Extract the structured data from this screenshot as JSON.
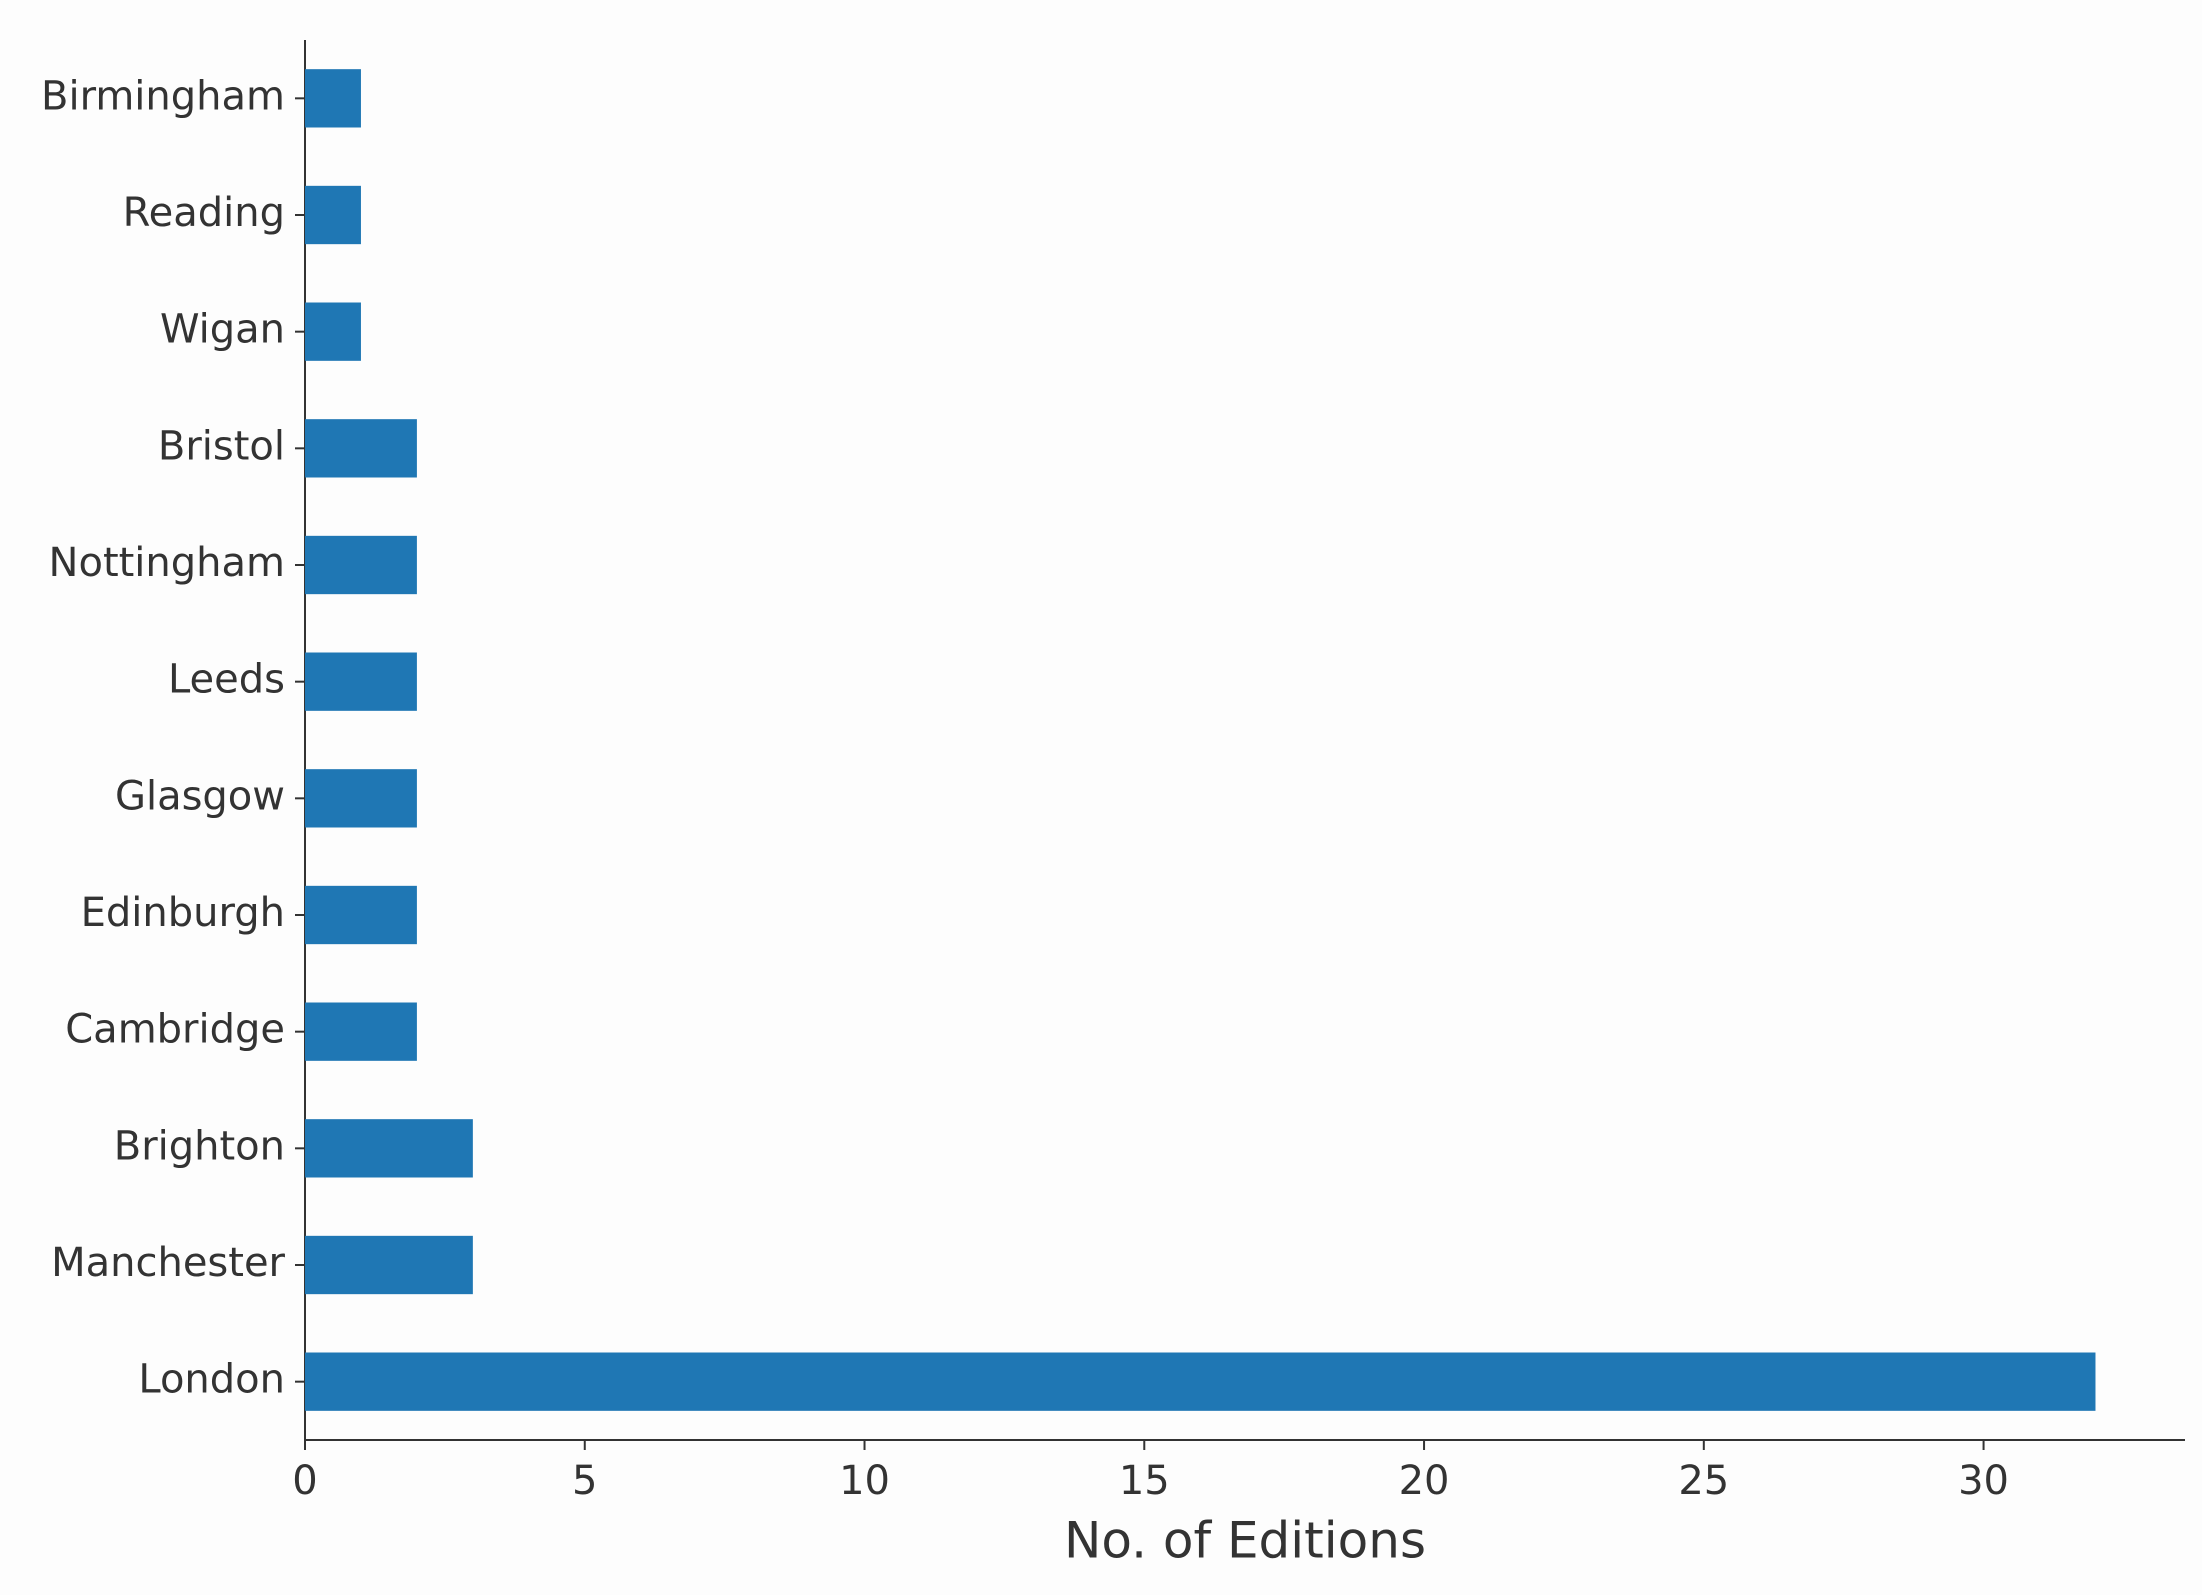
{
  "chart_data": {
    "type": "barh",
    "xlabel": "No. of Editions",
    "categories": [
      "Birmingham",
      "Reading",
      "Wigan",
      "Bristol",
      "Nottingham",
      "Leeds",
      "Glasgow",
      "Edinburgh",
      "Cambridge",
      "Brighton",
      "Manchester",
      "London"
    ],
    "values": [
      1,
      1,
      1,
      2,
      2,
      2,
      2,
      2,
      2,
      3,
      3,
      32
    ],
    "color": "#1f77b4",
    "xlim": [
      0,
      33.6
    ],
    "xticks": [
      0,
      5,
      10,
      15,
      20,
      25,
      30
    ],
    "grid": false
  }
}
